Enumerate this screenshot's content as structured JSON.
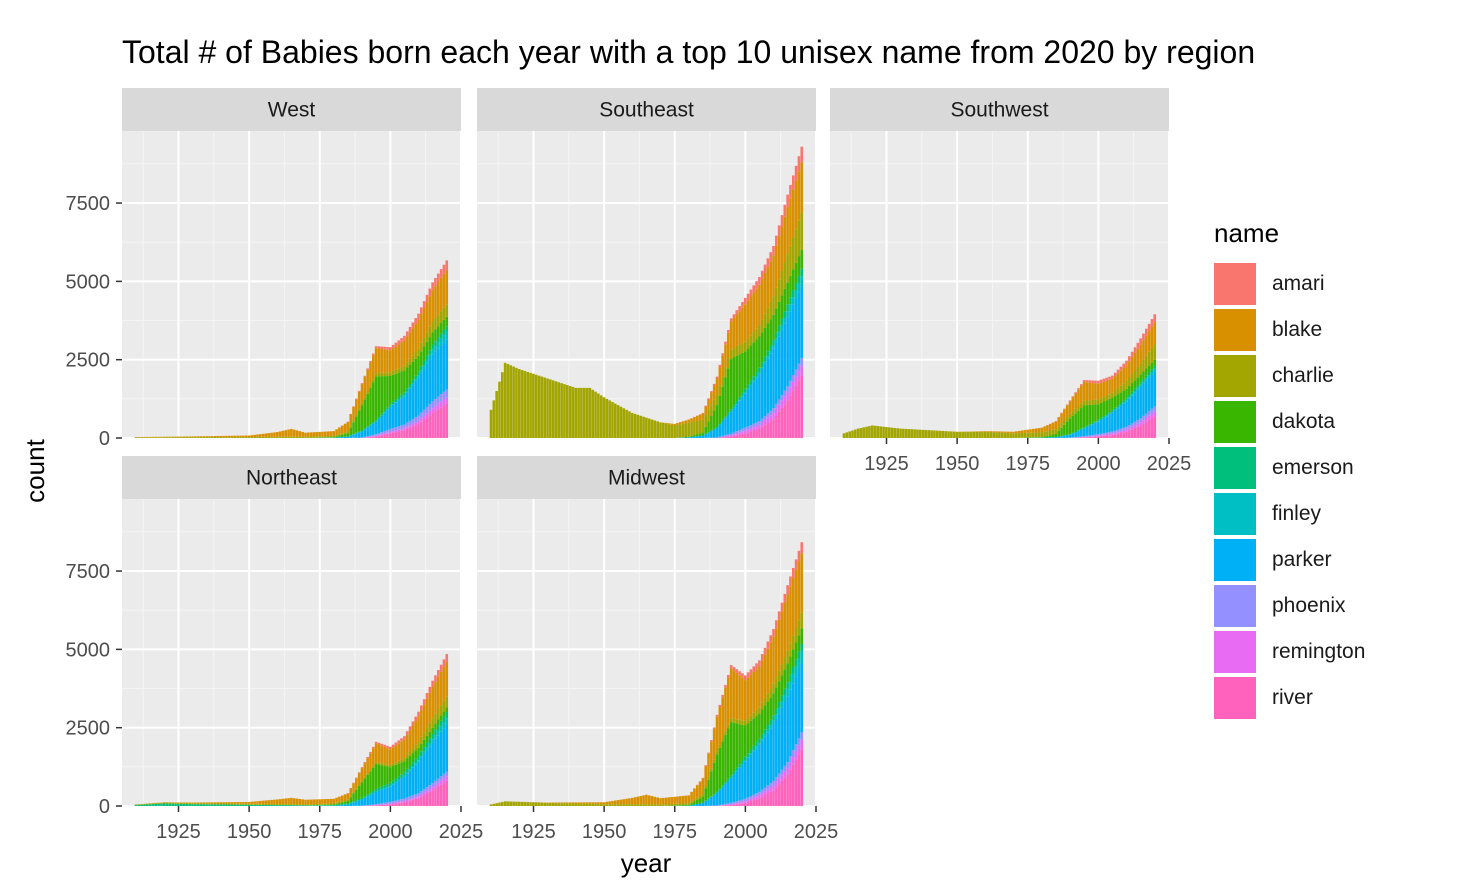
{
  "chart_data": {
    "type": "area",
    "title": "Total # of Babies born each year with a top 10 unisex name from 2020 by region",
    "xlabel": "year",
    "ylabel": "count",
    "xlim": [
      1905,
      2025
    ],
    "ylim": [
      0,
      9800
    ],
    "x_ticks": [
      1925,
      1950,
      1975,
      2000,
      2025
    ],
    "y_ticks": [
      0,
      2500,
      5000,
      7500
    ],
    "legend": {
      "title": "name",
      "position": "right"
    },
    "series_names": [
      "amari",
      "blake",
      "charlie",
      "dakota",
      "emerson",
      "finley",
      "parker",
      "phoenix",
      "remington",
      "river"
    ],
    "colors": [
      "#F8766D",
      "#D89000",
      "#A3A500",
      "#39B600",
      "#00BF7D",
      "#00BFC4",
      "#00B0F6",
      "#9590FF",
      "#E76BF3",
      "#FF62BC"
    ],
    "stack_order_bottom_to_top": [
      "river",
      "remington",
      "phoenix",
      "parker",
      "finley",
      "emerson",
      "dakota",
      "charlie",
      "blake",
      "amari"
    ],
    "panels": [
      {
        "region": "West",
        "x": [
          1910,
          1930,
          1950,
          1960,
          1965,
          1970,
          1980,
          1985,
          1990,
          1995,
          2000,
          2005,
          2010,
          2015,
          2020
        ],
        "series": {
          "river": [
            0,
            0,
            0,
            0,
            0,
            0,
            0,
            0,
            0,
            50,
            150,
            250,
            450,
            800,
            1100
          ],
          "remington": [
            0,
            0,
            0,
            0,
            0,
            0,
            0,
            0,
            0,
            20,
            40,
            60,
            100,
            150,
            200
          ],
          "phoenix": [
            0,
            0,
            0,
            0,
            0,
            0,
            0,
            0,
            20,
            50,
            100,
            120,
            170,
            220,
            250
          ],
          "parker": [
            0,
            0,
            0,
            0,
            0,
            0,
            10,
            50,
            200,
            400,
            700,
            900,
            1200,
            1500,
            1600
          ],
          "finley": [
            0,
            0,
            0,
            0,
            0,
            0,
            0,
            0,
            0,
            0,
            10,
            30,
            80,
            150,
            250
          ],
          "emerson": [
            0,
            0,
            0,
            0,
            0,
            0,
            0,
            0,
            20,
            50,
            80,
            100,
            120,
            150,
            170
          ],
          "dakota": [
            0,
            0,
            0,
            0,
            0,
            0,
            20,
            100,
            800,
            1400,
            900,
            700,
            500,
            400,
            300
          ],
          "charlie": [
            20,
            30,
            30,
            40,
            40,
            40,
            40,
            60,
            80,
            100,
            120,
            150,
            250,
            350,
            400
          ],
          "blake": [
            10,
            20,
            50,
            150,
            250,
            130,
            150,
            300,
            600,
            800,
            700,
            800,
            900,
            1000,
            1100
          ],
          "amari": [
            0,
            0,
            0,
            0,
            0,
            0,
            0,
            10,
            30,
            60,
            100,
            150,
            200,
            250,
            300
          ]
        }
      },
      {
        "region": "Southeast",
        "x": [
          1910,
          1915,
          1920,
          1930,
          1940,
          1945,
          1950,
          1960,
          1970,
          1975,
          1980,
          1985,
          1990,
          1995,
          2000,
          2005,
          2010,
          2015,
          2020
        ],
        "series": {
          "river": [
            0,
            0,
            0,
            0,
            0,
            0,
            0,
            0,
            0,
            0,
            0,
            0,
            0,
            50,
            150,
            300,
            600,
            1200,
            2000
          ],
          "remington": [
            0,
            0,
            0,
            0,
            0,
            0,
            0,
            0,
            0,
            0,
            0,
            0,
            0,
            30,
            80,
            120,
            200,
            250,
            300
          ],
          "phoenix": [
            0,
            0,
            0,
            0,
            0,
            0,
            0,
            0,
            0,
            0,
            0,
            0,
            20,
            60,
            100,
            120,
            150,
            200,
            250
          ],
          "parker": [
            0,
            0,
            0,
            0,
            0,
            0,
            0,
            0,
            0,
            0,
            20,
            80,
            300,
            700,
            1100,
            1500,
            1900,
            2200,
            2300
          ],
          "finley": [
            0,
            0,
            0,
            0,
            0,
            0,
            0,
            0,
            0,
            0,
            0,
            0,
            0,
            0,
            20,
            50,
            100,
            200,
            300
          ],
          "emerson": [
            0,
            0,
            0,
            0,
            0,
            0,
            0,
            0,
            0,
            0,
            0,
            0,
            30,
            80,
            120,
            150,
            180,
            220,
            250
          ],
          "dakota": [
            0,
            0,
            0,
            0,
            0,
            0,
            0,
            0,
            0,
            0,
            20,
            100,
            700,
            1600,
            1200,
            1000,
            800,
            700,
            600
          ],
          "charlie": [
            900,
            2400,
            2200,
            1900,
            1600,
            1600,
            1300,
            800,
            500,
            400,
            450,
            400,
            350,
            300,
            300,
            350,
            600,
            900,
            1200
          ],
          "blake": [
            0,
            0,
            0,
            0,
            0,
            0,
            0,
            0,
            0,
            50,
            100,
            200,
            500,
            900,
            1200,
            1300,
            1300,
            1500,
            1600
          ],
          "amari": [
            0,
            0,
            0,
            0,
            0,
            0,
            0,
            0,
            0,
            0,
            0,
            20,
            60,
            100,
            200,
            250,
            300,
            400,
            500
          ]
        }
      },
      {
        "region": "Southwest",
        "x": [
          1910,
          1915,
          1920,
          1930,
          1950,
          1960,
          1970,
          1980,
          1985,
          1990,
          1995,
          2000,
          2005,
          2010,
          2015,
          2020
        ],
        "series": {
          "river": [
            0,
            0,
            0,
            0,
            0,
            0,
            0,
            0,
            0,
            0,
            20,
            50,
            100,
            200,
            400,
            700
          ],
          "remington": [
            0,
            0,
            0,
            0,
            0,
            0,
            0,
            0,
            0,
            0,
            10,
            20,
            40,
            60,
            100,
            150
          ],
          "phoenix": [
            0,
            0,
            0,
            0,
            0,
            0,
            0,
            0,
            0,
            10,
            30,
            50,
            70,
            100,
            130,
            160
          ],
          "parker": [
            0,
            0,
            0,
            0,
            0,
            0,
            0,
            10,
            30,
            100,
            250,
            400,
            600,
            800,
            1000,
            1100
          ],
          "finley": [
            0,
            0,
            0,
            0,
            0,
            0,
            0,
            0,
            0,
            0,
            0,
            10,
            20,
            40,
            70,
            100
          ],
          "emerson": [
            0,
            0,
            0,
            0,
            0,
            0,
            0,
            0,
            0,
            10,
            30,
            50,
            60,
            70,
            80,
            90
          ],
          "dakota": [
            0,
            0,
            0,
            0,
            0,
            0,
            0,
            20,
            100,
            500,
            700,
            500,
            400,
            300,
            250,
            200
          ],
          "charlie": [
            150,
            300,
            400,
            300,
            200,
            200,
            150,
            150,
            150,
            150,
            150,
            150,
            150,
            250,
            350,
            500
          ],
          "blake": [
            0,
            0,
            0,
            0,
            0,
            20,
            50,
            150,
            250,
            400,
            600,
            500,
            450,
            500,
            600,
            700
          ],
          "amari": [
            0,
            0,
            0,
            0,
            0,
            0,
            0,
            0,
            10,
            30,
            60,
            100,
            100,
            150,
            200,
            250
          ]
        }
      },
      {
        "region": "Northeast",
        "x": [
          1910,
          1920,
          1930,
          1950,
          1960,
          1965,
          1970,
          1980,
          1985,
          1990,
          1995,
          2000,
          2005,
          2010,
          2015,
          2020
        ],
        "series": {
          "river": [
            0,
            0,
            0,
            0,
            0,
            0,
            0,
            0,
            0,
            0,
            20,
            50,
            120,
            250,
            500,
            800
          ],
          "remington": [
            0,
            0,
            0,
            0,
            0,
            0,
            0,
            0,
            0,
            0,
            10,
            20,
            40,
            60,
            100,
            150
          ],
          "phoenix": [
            0,
            0,
            0,
            0,
            0,
            0,
            0,
            0,
            0,
            10,
            30,
            60,
            80,
            100,
            130,
            150
          ],
          "parker": [
            0,
            0,
            0,
            0,
            0,
            0,
            0,
            10,
            50,
            200,
            400,
            500,
            700,
            1000,
            1300,
            1500
          ],
          "finley": [
            0,
            0,
            0,
            0,
            0,
            0,
            0,
            0,
            0,
            0,
            0,
            10,
            20,
            50,
            100,
            200
          ],
          "emerson": [
            30,
            80,
            60,
            40,
            30,
            30,
            20,
            20,
            30,
            50,
            80,
            100,
            120,
            150,
            170,
            200
          ],
          "dakota": [
            0,
            0,
            0,
            0,
            0,
            0,
            0,
            20,
            80,
            500,
            800,
            500,
            350,
            250,
            200,
            150
          ],
          "charlie": [
            20,
            30,
            30,
            30,
            30,
            30,
            30,
            30,
            40,
            50,
            60,
            70,
            100,
            200,
            300,
            350
          ],
          "blake": [
            0,
            10,
            20,
            60,
            150,
            200,
            150,
            150,
            200,
            400,
            600,
            500,
            600,
            800,
            1000,
            1100
          ],
          "amari": [
            0,
            0,
            0,
            0,
            0,
            0,
            0,
            0,
            10,
            30,
            50,
            80,
            100,
            150,
            200,
            250
          ]
        }
      },
      {
        "region": "Midwest",
        "x": [
          1910,
          1915,
          1930,
          1950,
          1960,
          1965,
          1970,
          1980,
          1985,
          1990,
          1995,
          2000,
          2005,
          2010,
          2015,
          2020
        ],
        "series": {
          "river": [
            0,
            0,
            0,
            0,
            0,
            0,
            0,
            0,
            0,
            0,
            30,
            100,
            250,
            500,
            1000,
            1800
          ],
          "remington": [
            0,
            0,
            0,
            0,
            0,
            0,
            0,
            0,
            0,
            0,
            20,
            50,
            100,
            150,
            200,
            300
          ],
          "phoenix": [
            0,
            0,
            0,
            0,
            0,
            0,
            0,
            0,
            0,
            20,
            50,
            80,
            100,
            150,
            200,
            250
          ],
          "parker": [
            0,
            0,
            0,
            0,
            0,
            0,
            0,
            10,
            100,
            400,
            800,
            1200,
            1500,
            1800,
            2100,
            2200
          ],
          "finley": [
            0,
            0,
            0,
            0,
            0,
            0,
            0,
            0,
            0,
            0,
            0,
            20,
            50,
            120,
            250,
            400
          ],
          "emerson": [
            0,
            0,
            0,
            0,
            0,
            0,
            0,
            0,
            0,
            30,
            80,
            120,
            150,
            180,
            200,
            220
          ],
          "dakota": [
            0,
            0,
            0,
            0,
            0,
            0,
            0,
            30,
            200,
            1200,
            1700,
            1000,
            800,
            700,
            600,
            500
          ],
          "charlie": [
            50,
            150,
            100,
            60,
            60,
            60,
            50,
            50,
            80,
            100,
            120,
            150,
            200,
            300,
            400,
            500
          ],
          "blake": [
            0,
            0,
            10,
            60,
            200,
            300,
            200,
            250,
            500,
            1100,
            1600,
            1300,
            1300,
            1500,
            1800,
            1900
          ],
          "amari": [
            0,
            0,
            0,
            0,
            0,
            0,
            0,
            0,
            20,
            60,
            100,
            150,
            200,
            250,
            300,
            350
          ]
        }
      }
    ]
  }
}
